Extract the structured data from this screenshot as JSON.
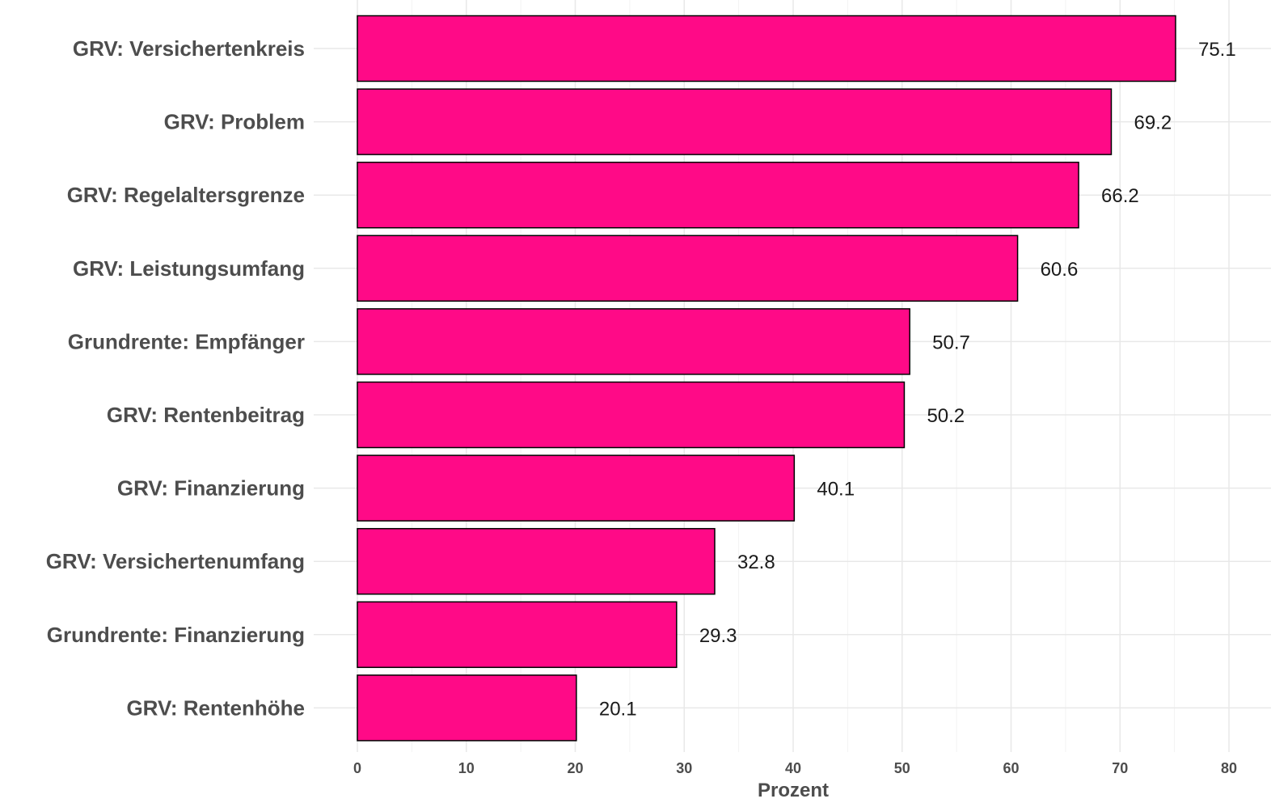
{
  "chart_data": {
    "type": "bar",
    "orientation": "horizontal",
    "categories": [
      "GRV: Versichertenkreis",
      "GRV: Problem",
      "GRV: Regelaltersgrenze",
      "GRV: Leistungsumfang",
      "Grundrente: Empfänger",
      "GRV: Rentenbeitrag",
      "GRV: Finanzierung",
      "GRV: Versichertenumfang",
      "Grundrente: Finanzierung",
      "GRV: Rentenhöhe"
    ],
    "values": [
      75.1,
      69.2,
      66.2,
      60.6,
      50.7,
      50.2,
      40.1,
      32.8,
      29.3,
      20.1
    ],
    "value_labels": [
      "75.1",
      "69.2",
      "66.2",
      "60.6",
      "50.7",
      "50.2",
      "40.1",
      "32.8",
      "29.3",
      "20.1"
    ],
    "xlabel": "Prozent",
    "ylabel": "",
    "xlim": [
      0,
      80
    ],
    "x_ticks": [
      "0",
      "10",
      "20",
      "30",
      "40",
      "50",
      "60",
      "70",
      "80"
    ],
    "grid": true,
    "legend": "none",
    "colors": {
      "bar_fill": "#FF0A87",
      "bar_stroke": "#000000",
      "grid_major": "#e8e8e8",
      "grid_minor": "#f3f3f3"
    }
  }
}
